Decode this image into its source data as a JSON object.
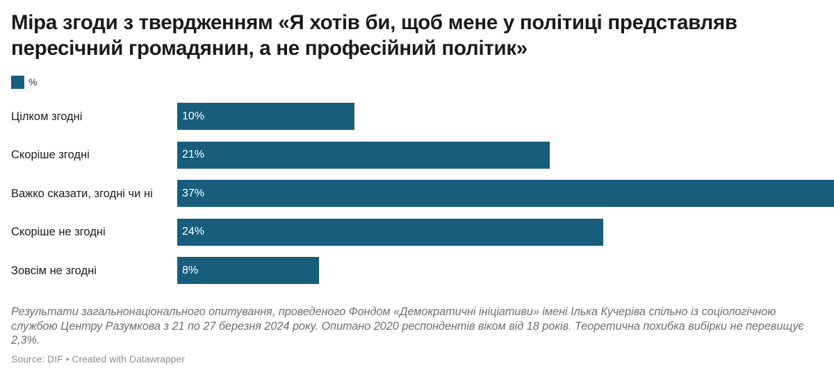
{
  "title": "Міра згоди з твердженням «Я хотів би, щоб мене у політиці представляв пересічний громадянин, а не професійний політик»",
  "legend": {
    "label": "%",
    "color": "#185e7c"
  },
  "chart_data": {
    "type": "bar",
    "orientation": "horizontal",
    "categories": [
      "Цілком згодні",
      "Скоріше згодні",
      "Важко сказати, згодні чи ні",
      "Скоріше не згодні",
      "Зовсім не згодні"
    ],
    "values": [
      10,
      21,
      37,
      24,
      8
    ],
    "value_labels": [
      "10%",
      "21%",
      "37%",
      "24%",
      "8%"
    ],
    "series": [
      {
        "name": "%",
        "values": [
          10,
          21,
          37,
          24,
          8
        ]
      }
    ],
    "xlim": [
      0,
      37
    ],
    "grid": false,
    "legend_position": "top-left",
    "bar_color": "#185e7c"
  },
  "notes": "Результати загальнонаціонального опитування, проведеного Фондом «Демократичні ініціативи» імені Ілька Кучеріва спільно із соціологічною службою Центру Разумкова з 21 по 27 березня 2024 року. Опитано 2020 респондентів віком від 18 років. Теоретична похибка вибірки не перевищує 2,3%.",
  "source": "Source: DIF • Created with Datawrapper"
}
